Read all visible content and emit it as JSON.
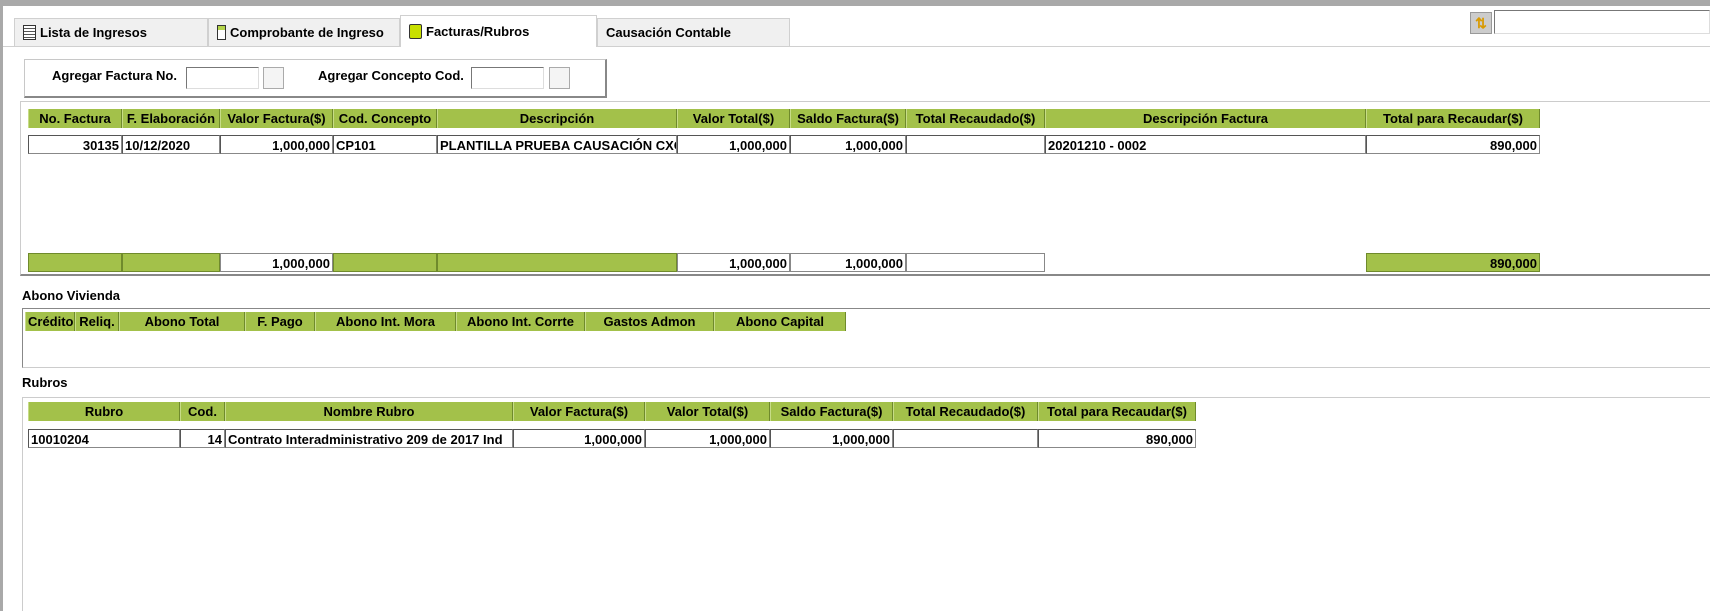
{
  "tabs": [
    {
      "label": "Lista de Ingresos",
      "icon": "list-icon"
    },
    {
      "label": "Comprobante de Ingreso",
      "icon": "document-icon"
    },
    {
      "label": "Facturas/Rubros",
      "icon": "invoice-icon",
      "active": true
    },
    {
      "label": "Causación Contable"
    }
  ],
  "toolbar": {
    "refresh_icon": "refresh-icon",
    "search_value": ""
  },
  "agregar": {
    "factura_label": "Agregar Factura No.",
    "factura_value": "",
    "concepto_label": "Agregar Concepto Cod.",
    "concepto_value": ""
  },
  "facturas": {
    "columns": [
      "No.  Factura",
      "F. Elaboración",
      "Valor Factura($)",
      "Cod. Concepto",
      "Descripción",
      "Valor Total($)",
      "Saldo Factura($)",
      "Total Recaudado($)",
      "Descripción Factura",
      "Total para Recaudar($)"
    ],
    "rows": [
      [
        "30135",
        "10/12/2020",
        "1,000,000",
        "CP101",
        "PLANTILLA PRUEBA CAUSACIÓN CXC C",
        "1,000,000",
        "1,000,000",
        "",
        "20201210 - 0002",
        "890,000"
      ]
    ],
    "totals": [
      "",
      "",
      "1,000,000",
      "",
      "",
      "1,000,000",
      "1,000,000",
      "",
      "",
      "890,000"
    ]
  },
  "abono": {
    "title": "Abono Vivienda",
    "columns": [
      "Crédito",
      "Reliq.",
      "Abono Total",
      "F. Pago",
      "Abono Int. Mora",
      "Abono Int. Corrte",
      "Gastos Admon",
      "Abono Capital"
    ]
  },
  "rubros": {
    "title": "Rubros",
    "columns": [
      "Rubro",
      "Cod.",
      "Nombre Rubro",
      "Valor Factura($)",
      "Valor Total($)",
      "Saldo Factura($)",
      "Total Recaudado($)",
      "Total para Recaudar($)"
    ],
    "rows": [
      [
        "10010204",
        "14",
        "Contrato Interadministrativo 209 de 2017 Ind",
        "1,000,000",
        "1,000,000",
        "1,000,000",
        "",
        "890,000"
      ]
    ]
  },
  "colors": {
    "header_green": "#a3c14a"
  }
}
